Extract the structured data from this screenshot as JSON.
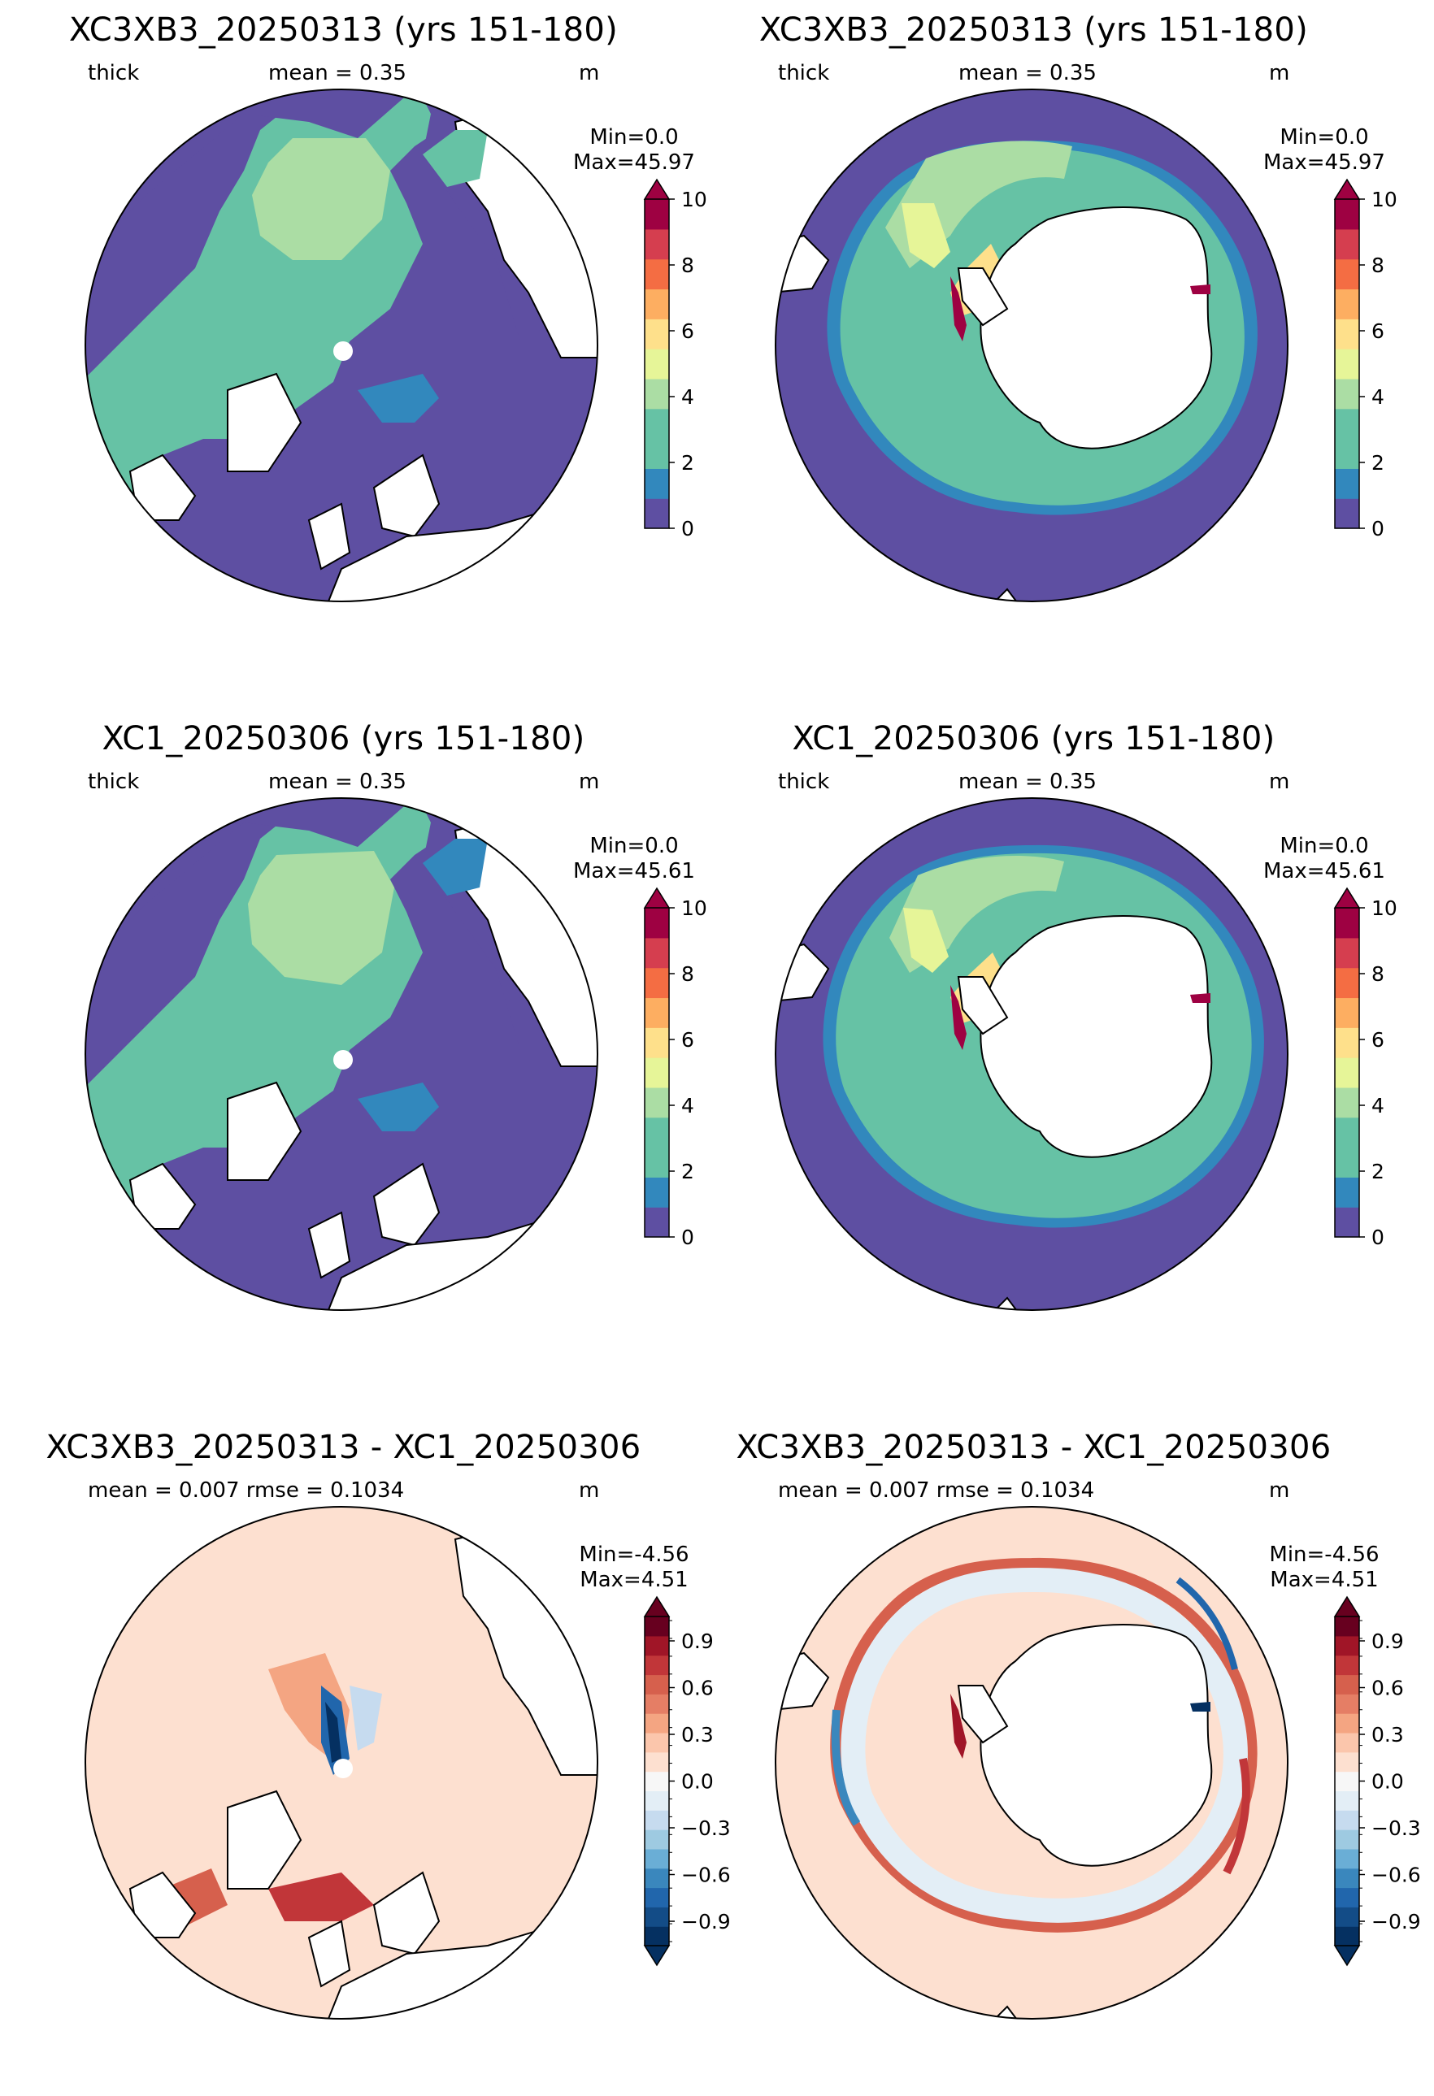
{
  "panels": [
    {
      "title": "XC3XB3_20250313 (yrs 151-180)",
      "var": "thick",
      "mean": "mean = 0.35",
      "units": "m",
      "min": "Min=0.0",
      "max": "Max=45.97",
      "hemisphere": "north",
      "colorbar": "thick"
    },
    {
      "title": "XC3XB3_20250313 (yrs 151-180)",
      "var": "thick",
      "mean": "mean = 0.35",
      "units": "m",
      "min": "Min=0.0",
      "max": "Max=45.97",
      "hemisphere": "south",
      "colorbar": "thick"
    },
    {
      "title": "XC1_20250306 (yrs 151-180)",
      "var": "thick",
      "mean": "mean = 0.35",
      "units": "m",
      "min": "Min=0.0",
      "max": "Max=45.61",
      "hemisphere": "north",
      "colorbar": "thick"
    },
    {
      "title": "XC1_20250306 (yrs 151-180)",
      "var": "thick",
      "mean": "mean = 0.35",
      "units": "m",
      "min": "Min=0.0",
      "max": "Max=45.61",
      "hemisphere": "south",
      "colorbar": "thick"
    },
    {
      "title": "XC3XB3_20250313 - XC1_20250306",
      "stats": "mean = 0.007 rmse = 0.1034",
      "units": "m",
      "min": "Min=-4.56",
      "max": "Max=4.51",
      "hemisphere": "north",
      "colorbar": "diff"
    },
    {
      "title": "XC3XB3_20250313 - XC1_20250306",
      "stats": "mean = 0.007 rmse = 0.1034",
      "units": "m",
      "min": "Min=-4.56",
      "max": "Max=4.51",
      "hemisphere": "south",
      "colorbar": "diff"
    }
  ],
  "colorbars": {
    "thick": {
      "labels": [
        "0",
        "2",
        "4",
        "6",
        "8",
        "10"
      ],
      "colors": [
        "#5e4fa2",
        "#3288bd",
        "#66c2a5",
        "#66c2a5",
        "#abdda4",
        "#e6f598",
        "#fee08b",
        "#fdae61",
        "#f46d43",
        "#d53e4f",
        "#9e0142"
      ],
      "extend_color": "#9e0142"
    },
    "diff": {
      "labels": [
        "0.9",
        "0.6",
        "0.3",
        "0.0",
        "−0.3",
        "−0.6",
        "−0.9"
      ],
      "colors": [
        "#053061",
        "#134c87",
        "#2166ac",
        "#3a87bd",
        "#6aaed6",
        "#9ecae1",
        "#c6dbef",
        "#e3eef6",
        "#f7f7f7",
        "#fde0d0",
        "#fbc6ac",
        "#f4a582",
        "#e57e65",
        "#d6604d",
        "#c13639",
        "#a01527",
        "#67001f"
      ],
      "min_extend": "#053061",
      "max_extend": "#67001f"
    }
  },
  "colors": {
    "ocean_zero": "#5e4fa2",
    "ice_mid": "#66c2a5",
    "ice_thick": "#abdda4",
    "diff_background": "#fde0d0",
    "land": "#ffffff"
  }
}
